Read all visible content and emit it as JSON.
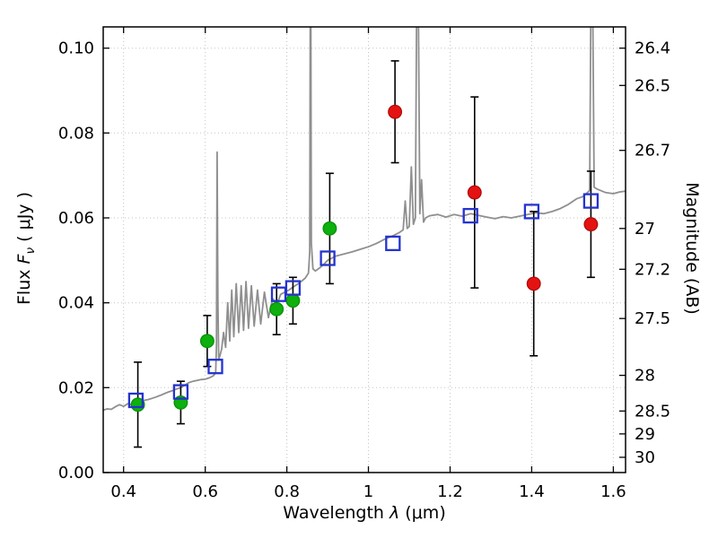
{
  "figure": {
    "xlabel_pre": "Wavelength  ",
    "xlabel_sym": "λ",
    "xlabel_unit": " (μm)",
    "ylabel_left_pre": "Flux  ",
    "ylabel_left_sym": "F",
    "ylabel_left_sub": "ν",
    "ylabel_left_unit": "  ( μJy )",
    "ylabel_right": "Magnitude (AB)"
  },
  "colors": {
    "spectrum": "#8f8f8f",
    "green_fill": "#0db00d",
    "green_edge": "#089008",
    "red_fill": "#e51212",
    "red_edge": "#b00b0b",
    "blue": "#2433cf",
    "error_bar": "#000000",
    "grid": "#c3c3c3",
    "frame": "#000000"
  },
  "chart_data": {
    "type": "scatter",
    "title": "",
    "xlabel": "Wavelength λ (μm)",
    "ylabel_left": "Flux Fν (μJy)",
    "ylabel_right": "Magnitude (AB)",
    "xlim": [
      0.35,
      1.63
    ],
    "ylim_flux_uJy": [
      0.0,
      0.105
    ],
    "grid": {
      "show": true,
      "style": "dotted"
    },
    "x_ticks": [
      {
        "value": 0.4,
        "label": "0.4"
      },
      {
        "value": 0.6,
        "label": "0.6"
      },
      {
        "value": 0.8,
        "label": "0.8"
      },
      {
        "value": 1.0,
        "label": "1"
      },
      {
        "value": 1.2,
        "label": "1.2"
      },
      {
        "value": 1.4,
        "label": "1.4"
      },
      {
        "value": 1.6,
        "label": "1.6"
      }
    ],
    "y_ticks_left": [
      {
        "value": 0.0,
        "label": "0.00"
      },
      {
        "value": 0.02,
        "label": "0.02"
      },
      {
        "value": 0.04,
        "label": "0.04"
      },
      {
        "value": 0.06,
        "label": "0.06"
      },
      {
        "value": 0.08,
        "label": "0.08"
      },
      {
        "value": 0.1,
        "label": "0.10"
      }
    ],
    "y_ticks_right_mag": [
      {
        "label": "26.4",
        "flux": 0.1
      },
      {
        "label": "26.5",
        "flux": 0.0912
      },
      {
        "label": "26.7",
        "flux": 0.0759
      },
      {
        "label": "27",
        "flux": 0.0575
      },
      {
        "label": "27.2",
        "flux": 0.0479
      },
      {
        "label": "27.5",
        "flux": 0.0363
      },
      {
        "label": "28",
        "flux": 0.0229
      },
      {
        "label": "28.5",
        "flux": 0.0145
      },
      {
        "label": "29",
        "flux": 0.0091
      },
      {
        "label": "30",
        "flux": 0.0036
      }
    ],
    "series": [
      {
        "id": "model-spectrum",
        "kind": "line",
        "color_key": "spectrum",
        "points": [
          [
            0.35,
            0.0147
          ],
          [
            0.36,
            0.015
          ],
          [
            0.37,
            0.0149
          ],
          [
            0.38,
            0.0155
          ],
          [
            0.39,
            0.016
          ],
          [
            0.4,
            0.0156
          ],
          [
            0.41,
            0.0162
          ],
          [
            0.42,
            0.016
          ],
          [
            0.43,
            0.0165
          ],
          [
            0.44,
            0.0168
          ],
          [
            0.45,
            0.017
          ],
          [
            0.46,
            0.0172
          ],
          [
            0.47,
            0.0175
          ],
          [
            0.48,
            0.0178
          ],
          [
            0.49,
            0.0182
          ],
          [
            0.5,
            0.0186
          ],
          [
            0.51,
            0.019
          ],
          [
            0.52,
            0.0193
          ],
          [
            0.53,
            0.0197
          ],
          [
            0.54,
            0.02
          ],
          [
            0.55,
            0.0206
          ],
          [
            0.56,
            0.0212
          ],
          [
            0.57,
            0.0215
          ],
          [
            0.58,
            0.0217
          ],
          [
            0.59,
            0.0219
          ],
          [
            0.6,
            0.022
          ],
          [
            0.61,
            0.0223
          ],
          [
            0.62,
            0.0228
          ],
          [
            0.6255,
            0.0235
          ],
          [
            0.6275,
            0.03
          ],
          [
            0.629,
            0.0755
          ],
          [
            0.631,
            0.04
          ],
          [
            0.633,
            0.0265
          ],
          [
            0.64,
            0.029
          ],
          [
            0.645,
            0.033
          ],
          [
            0.65,
            0.0295
          ],
          [
            0.655,
            0.04
          ],
          [
            0.66,
            0.031
          ],
          [
            0.665,
            0.043
          ],
          [
            0.67,
            0.032
          ],
          [
            0.676,
            0.0445
          ],
          [
            0.682,
            0.033
          ],
          [
            0.688,
            0.044
          ],
          [
            0.694,
            0.0335
          ],
          [
            0.7,
            0.045
          ],
          [
            0.706,
            0.034
          ],
          [
            0.713,
            0.044
          ],
          [
            0.72,
            0.0345
          ],
          [
            0.728,
            0.043
          ],
          [
            0.736,
            0.035
          ],
          [
            0.745,
            0.0425
          ],
          [
            0.755,
            0.0365
          ],
          [
            0.765,
            0.041
          ],
          [
            0.775,
            0.0395
          ],
          [
            0.785,
            0.042
          ],
          [
            0.795,
            0.0425
          ],
          [
            0.805,
            0.043
          ],
          [
            0.815,
            0.0437
          ],
          [
            0.825,
            0.0443
          ],
          [
            0.835,
            0.045
          ],
          [
            0.845,
            0.0458
          ],
          [
            0.853,
            0.047
          ],
          [
            0.856,
            0.052
          ],
          [
            0.858,
            0.14
          ],
          [
            0.86,
            0.054
          ],
          [
            0.864,
            0.048
          ],
          [
            0.87,
            0.0475
          ],
          [
            0.88,
            0.0482
          ],
          [
            0.89,
            0.049
          ],
          [
            0.9,
            0.05
          ],
          [
            0.91,
            0.0505
          ],
          [
            0.92,
            0.051
          ],
          [
            0.94,
            0.0515
          ],
          [
            0.96,
            0.052
          ],
          [
            0.98,
            0.0526
          ],
          [
            1.0,
            0.0532
          ],
          [
            1.02,
            0.054
          ],
          [
            1.04,
            0.055
          ],
          [
            1.06,
            0.0558
          ],
          [
            1.075,
            0.0565
          ],
          [
            1.085,
            0.0572
          ],
          [
            1.09,
            0.064
          ],
          [
            1.095,
            0.0575
          ],
          [
            1.1,
            0.058
          ],
          [
            1.105,
            0.072
          ],
          [
            1.11,
            0.0585
          ],
          [
            1.115,
            0.06
          ],
          [
            1.12,
            0.14
          ],
          [
            1.126,
            0.061
          ],
          [
            1.13,
            0.069
          ],
          [
            1.135,
            0.059
          ],
          [
            1.14,
            0.06
          ],
          [
            1.15,
            0.0605
          ],
          [
            1.17,
            0.0608
          ],
          [
            1.19,
            0.0602
          ],
          [
            1.21,
            0.0608
          ],
          [
            1.23,
            0.0604
          ],
          [
            1.25,
            0.061
          ],
          [
            1.27,
            0.0606
          ],
          [
            1.29,
            0.0602
          ],
          [
            1.31,
            0.0598
          ],
          [
            1.33,
            0.0603
          ],
          [
            1.35,
            0.06
          ],
          [
            1.37,
            0.0604
          ],
          [
            1.39,
            0.0608
          ],
          [
            1.41,
            0.0612
          ],
          [
            1.43,
            0.061
          ],
          [
            1.45,
            0.0615
          ],
          [
            1.47,
            0.0622
          ],
          [
            1.49,
            0.0632
          ],
          [
            1.51,
            0.0645
          ],
          [
            1.525,
            0.065
          ],
          [
            1.535,
            0.0658
          ],
          [
            1.542,
            0.0665
          ],
          [
            1.547,
            0.14
          ],
          [
            1.553,
            0.0672
          ],
          [
            1.56,
            0.0668
          ],
          [
            1.58,
            0.066
          ],
          [
            1.6,
            0.0657
          ],
          [
            1.615,
            0.0661
          ],
          [
            1.63,
            0.0663
          ]
        ]
      },
      {
        "id": "observed-photometry-optical",
        "kind": "scatter",
        "marker": "filled-circle",
        "color_key": "green_fill",
        "edge_key": "green_edge",
        "points": [
          {
            "x": 0.435,
            "flux": 0.016,
            "err": 0.01
          },
          {
            "x": 0.54,
            "flux": 0.0165,
            "err": 0.005
          },
          {
            "x": 0.605,
            "flux": 0.031,
            "err": 0.006
          },
          {
            "x": 0.775,
            "flux": 0.0385,
            "err": 0.006
          },
          {
            "x": 0.815,
            "flux": 0.0405,
            "err": 0.0055
          },
          {
            "x": 0.905,
            "flux": 0.0575,
            "err": 0.013
          }
        ]
      },
      {
        "id": "observed-photometry-infrared",
        "kind": "scatter",
        "marker": "filled-circle",
        "color_key": "red_fill",
        "edge_key": "red_edge",
        "points": [
          {
            "x": 1.065,
            "flux": 0.085,
            "err": 0.012
          },
          {
            "x": 1.26,
            "flux": 0.066,
            "err": 0.0225
          },
          {
            "x": 1.405,
            "flux": 0.0445,
            "err": 0.017
          },
          {
            "x": 1.545,
            "flux": 0.0585,
            "err": 0.0125
          }
        ]
      },
      {
        "id": "model-photometry",
        "kind": "scatter",
        "marker": "open-square",
        "color_key": "blue",
        "points": [
          {
            "x": 0.43,
            "flux": 0.017
          },
          {
            "x": 0.54,
            "flux": 0.019
          },
          {
            "x": 0.625,
            "flux": 0.025
          },
          {
            "x": 0.78,
            "flux": 0.042
          },
          {
            "x": 0.815,
            "flux": 0.0435
          },
          {
            "x": 0.9,
            "flux": 0.0505
          },
          {
            "x": 1.06,
            "flux": 0.054
          },
          {
            "x": 1.25,
            "flux": 0.0605
          },
          {
            "x": 1.4,
            "flux": 0.0615
          },
          {
            "x": 1.545,
            "flux": 0.064
          }
        ]
      }
    ]
  }
}
